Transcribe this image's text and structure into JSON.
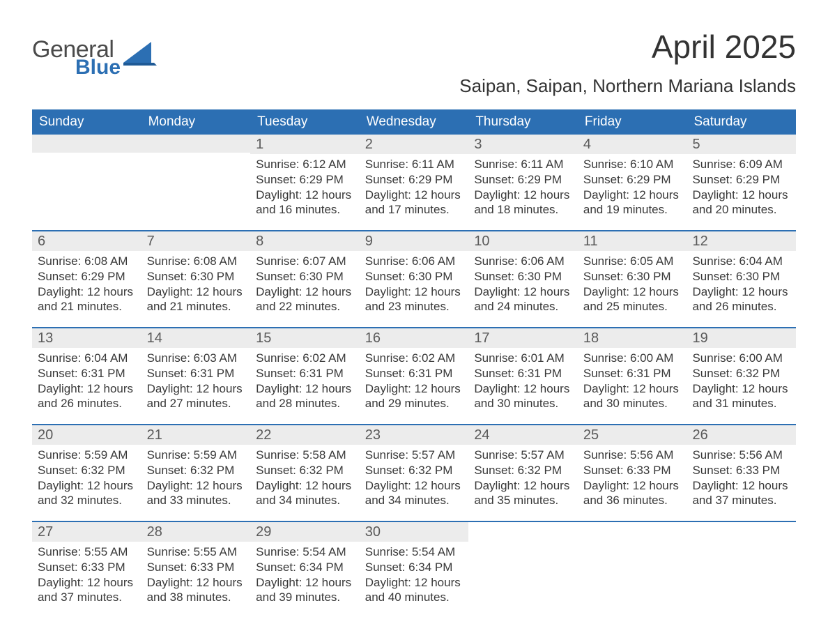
{
  "brand": {
    "word1": "General",
    "word2": "Blue",
    "accent_color": "#2c6fb3"
  },
  "title": "April 2025",
  "location": "Saipan, Saipan, Northern Mariana Islands",
  "colors": {
    "header_bg": "#2c6fb3",
    "header_text": "#ffffff",
    "daynum_bg": "#ececec",
    "body_text": "#333333",
    "page_bg": "#ffffff"
  },
  "typography": {
    "title_fontsize": 46,
    "location_fontsize": 26,
    "header_fontsize": 19,
    "daynum_fontsize": 20,
    "detail_fontsize": 17
  },
  "calendar": {
    "day_names": [
      "Sunday",
      "Monday",
      "Tuesday",
      "Wednesday",
      "Thursday",
      "Friday",
      "Saturday"
    ],
    "weeks": [
      [
        {
          "blank": true
        },
        {
          "blank": true
        },
        {
          "n": "1",
          "sunrise": "6:12 AM",
          "sunset": "6:29 PM",
          "daylight": "12 hours and 16 minutes."
        },
        {
          "n": "2",
          "sunrise": "6:11 AM",
          "sunset": "6:29 PM",
          "daylight": "12 hours and 17 minutes."
        },
        {
          "n": "3",
          "sunrise": "6:11 AM",
          "sunset": "6:29 PM",
          "daylight": "12 hours and 18 minutes."
        },
        {
          "n": "4",
          "sunrise": "6:10 AM",
          "sunset": "6:29 PM",
          "daylight": "12 hours and 19 minutes."
        },
        {
          "n": "5",
          "sunrise": "6:09 AM",
          "sunset": "6:29 PM",
          "daylight": "12 hours and 20 minutes."
        }
      ],
      [
        {
          "n": "6",
          "sunrise": "6:08 AM",
          "sunset": "6:29 PM",
          "daylight": "12 hours and 21 minutes."
        },
        {
          "n": "7",
          "sunrise": "6:08 AM",
          "sunset": "6:30 PM",
          "daylight": "12 hours and 21 minutes."
        },
        {
          "n": "8",
          "sunrise": "6:07 AM",
          "sunset": "6:30 PM",
          "daylight": "12 hours and 22 minutes."
        },
        {
          "n": "9",
          "sunrise": "6:06 AM",
          "sunset": "6:30 PM",
          "daylight": "12 hours and 23 minutes."
        },
        {
          "n": "10",
          "sunrise": "6:06 AM",
          "sunset": "6:30 PM",
          "daylight": "12 hours and 24 minutes."
        },
        {
          "n": "11",
          "sunrise": "6:05 AM",
          "sunset": "6:30 PM",
          "daylight": "12 hours and 25 minutes."
        },
        {
          "n": "12",
          "sunrise": "6:04 AM",
          "sunset": "6:30 PM",
          "daylight": "12 hours and 26 minutes."
        }
      ],
      [
        {
          "n": "13",
          "sunrise": "6:04 AM",
          "sunset": "6:31 PM",
          "daylight": "12 hours and 26 minutes."
        },
        {
          "n": "14",
          "sunrise": "6:03 AM",
          "sunset": "6:31 PM",
          "daylight": "12 hours and 27 minutes."
        },
        {
          "n": "15",
          "sunrise": "6:02 AM",
          "sunset": "6:31 PM",
          "daylight": "12 hours and 28 minutes."
        },
        {
          "n": "16",
          "sunrise": "6:02 AM",
          "sunset": "6:31 PM",
          "daylight": "12 hours and 29 minutes."
        },
        {
          "n": "17",
          "sunrise": "6:01 AM",
          "sunset": "6:31 PM",
          "daylight": "12 hours and 30 minutes."
        },
        {
          "n": "18",
          "sunrise": "6:00 AM",
          "sunset": "6:31 PM",
          "daylight": "12 hours and 30 minutes."
        },
        {
          "n": "19",
          "sunrise": "6:00 AM",
          "sunset": "6:32 PM",
          "daylight": "12 hours and 31 minutes."
        }
      ],
      [
        {
          "n": "20",
          "sunrise": "5:59 AM",
          "sunset": "6:32 PM",
          "daylight": "12 hours and 32 minutes."
        },
        {
          "n": "21",
          "sunrise": "5:59 AM",
          "sunset": "6:32 PM",
          "daylight": "12 hours and 33 minutes."
        },
        {
          "n": "22",
          "sunrise": "5:58 AM",
          "sunset": "6:32 PM",
          "daylight": "12 hours and 34 minutes."
        },
        {
          "n": "23",
          "sunrise": "5:57 AM",
          "sunset": "6:32 PM",
          "daylight": "12 hours and 34 minutes."
        },
        {
          "n": "24",
          "sunrise": "5:57 AM",
          "sunset": "6:32 PM",
          "daylight": "12 hours and 35 minutes."
        },
        {
          "n": "25",
          "sunrise": "5:56 AM",
          "sunset": "6:33 PM",
          "daylight": "12 hours and 36 minutes."
        },
        {
          "n": "26",
          "sunrise": "5:56 AM",
          "sunset": "6:33 PM",
          "daylight": "12 hours and 37 minutes."
        }
      ],
      [
        {
          "n": "27",
          "sunrise": "5:55 AM",
          "sunset": "6:33 PM",
          "daylight": "12 hours and 37 minutes."
        },
        {
          "n": "28",
          "sunrise": "5:55 AM",
          "sunset": "6:33 PM",
          "daylight": "12 hours and 38 minutes."
        },
        {
          "n": "29",
          "sunrise": "5:54 AM",
          "sunset": "6:34 PM",
          "daylight": "12 hours and 39 minutes."
        },
        {
          "n": "30",
          "sunrise": "5:54 AM",
          "sunset": "6:34 PM",
          "daylight": "12 hours and 40 minutes."
        },
        {
          "blank": true
        },
        {
          "blank": true
        },
        {
          "blank": true
        }
      ]
    ],
    "labels": {
      "sunrise": "Sunrise:",
      "sunset": "Sunset:",
      "daylight": "Daylight:"
    }
  }
}
